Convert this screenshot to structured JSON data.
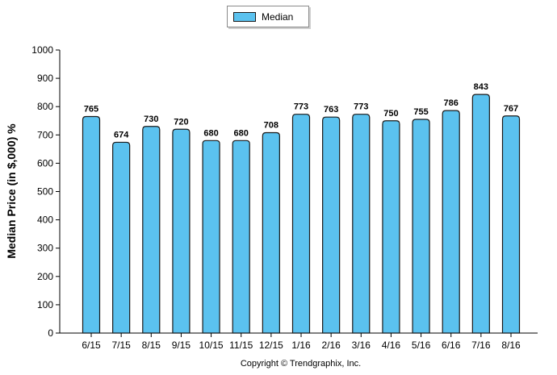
{
  "chart_data": {
    "type": "bar",
    "categories": [
      "6/15",
      "7/15",
      "8/15",
      "9/15",
      "10/15",
      "11/15",
      "12/15",
      "1/16",
      "2/16",
      "3/16",
      "4/16",
      "5/16",
      "6/16",
      "7/16",
      "8/16"
    ],
    "series": [
      {
        "name": "Median",
        "values": [
          765,
          674,
          730,
          720,
          680,
          680,
          708,
          773,
          763,
          773,
          750,
          755,
          786,
          843,
          767
        ]
      }
    ],
    "ylabel": "Median Price (in $,000) %",
    "xlabel": "",
    "ylim": [
      0,
      1000
    ],
    "yticks": [
      0,
      100,
      200,
      300,
      400,
      500,
      600,
      700,
      800,
      900,
      1000
    ],
    "grid": false,
    "legend_position": "top-center",
    "bar_color": "#5bc2ef",
    "bar_outline_color": "#1a1a1a"
  },
  "legend": {
    "label": "Median"
  },
  "footer": {
    "copyright": "Copyright © Trendgraphix, Inc."
  }
}
